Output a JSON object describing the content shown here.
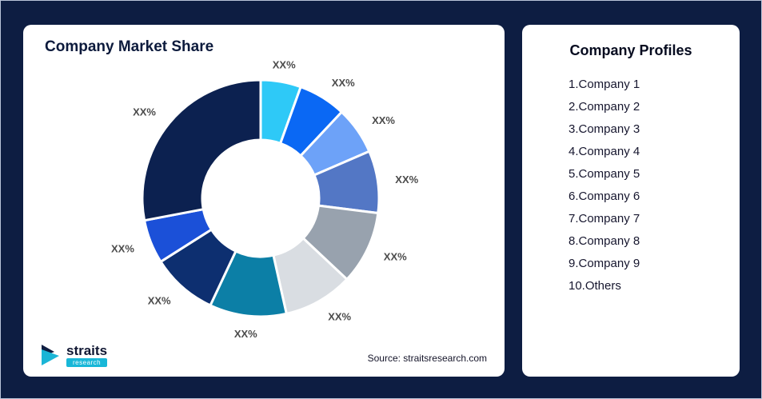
{
  "page": {
    "background": "#0d1d42"
  },
  "market_share_card": {
    "title": "Company Market Share",
    "source": "Source: straitsresearch.com",
    "logo": {
      "brand": "straits",
      "sub_brand": "research"
    }
  },
  "profiles_card": {
    "title": "Company Profiles",
    "items": [
      "1.Company 1",
      "2.Company 2",
      "3.Company 3",
      "4.Company 4",
      "5.Company 5",
      "6.Company 6",
      "7.Company 7",
      "8.Company 8",
      "9.Company 9",
      "10.Others"
    ]
  },
  "chart_data": {
    "type": "pie",
    "subtype": "donut",
    "title": "Company Market Share",
    "labels": [
      "Company 1",
      "Company 2",
      "Company 3",
      "Company 4",
      "Company 5",
      "Company 6",
      "Company 7",
      "Company 8",
      "Company 9",
      "Others"
    ],
    "segment_labels": [
      "XX%",
      "XX%",
      "XX%",
      "XX%",
      "XX%",
      "XX%",
      "XX%",
      "XX%",
      "XX%",
      "XX%"
    ],
    "values": [
      5.5,
      6.5,
      6.5,
      8.5,
      10,
      9.5,
      10.5,
      9,
      6,
      28
    ],
    "colors": [
      "#2ec9f7",
      "#0a68f4",
      "#6da2f8",
      "#5377c5",
      "#98a2ae",
      "#d9dde2",
      "#0c7fa6",
      "#0d2f70",
      "#1b50d8",
      "#0c2150"
    ],
    "start_angle_deg": 0,
    "direction": "clockwise",
    "legend": "none",
    "gridlines": false
  }
}
